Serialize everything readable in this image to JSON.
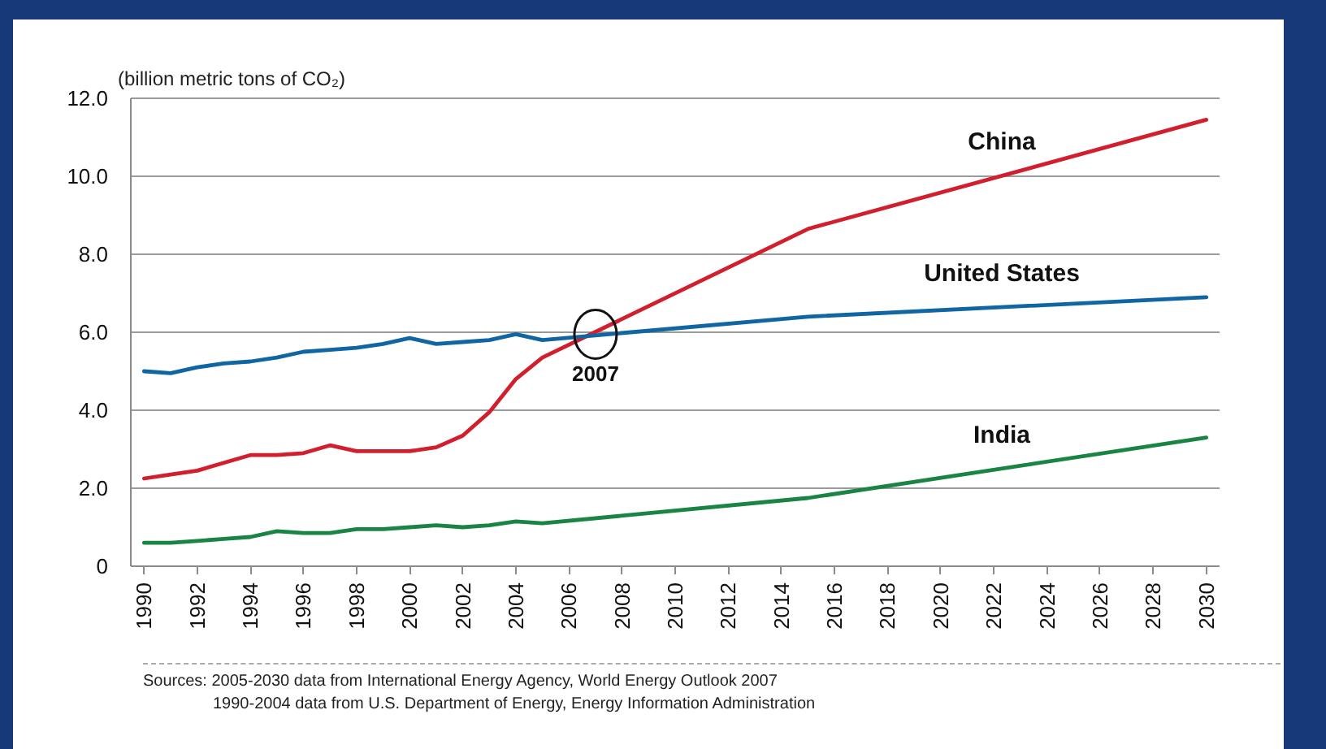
{
  "chart_data": {
    "type": "line",
    "ylabel": "(billion metric tons of CO₂)",
    "x": [
      1990,
      1991,
      1992,
      1993,
      1994,
      1995,
      1996,
      1997,
      1998,
      1999,
      2000,
      2001,
      2002,
      2003,
      2004,
      2005,
      2015,
      2030
    ],
    "series": [
      {
        "name": "China",
        "color": "#d21f2d",
        "values": [
          2.25,
          2.35,
          2.45,
          2.65,
          2.85,
          2.85,
          2.9,
          3.1,
          2.95,
          2.95,
          2.95,
          3.05,
          3.35,
          3.95,
          4.8,
          5.35,
          8.65,
          11.45
        ]
      },
      {
        "name": "United States",
        "color": "#0f66a3",
        "values": [
          5.0,
          4.95,
          5.1,
          5.2,
          5.25,
          5.35,
          5.5,
          5.55,
          5.6,
          5.7,
          5.85,
          5.7,
          5.75,
          5.8,
          5.95,
          5.8,
          6.4,
          6.9
        ]
      },
      {
        "name": "India",
        "color": "#1a8444",
        "values": [
          0.6,
          0.6,
          0.65,
          0.7,
          0.75,
          0.9,
          0.85,
          0.85,
          0.95,
          0.95,
          1.0,
          1.05,
          1.0,
          1.05,
          1.15,
          1.1,
          1.75,
          3.3
        ]
      }
    ],
    "xlim": [
      1989.5,
      2030.5
    ],
    "ylim": [
      0,
      12
    ],
    "xticks": [
      1990,
      1992,
      1994,
      1996,
      1998,
      2000,
      2002,
      2004,
      2006,
      2008,
      2010,
      2012,
      2014,
      2016,
      2018,
      2020,
      2022,
      2024,
      2026,
      2028,
      2030
    ],
    "yticks": [
      0,
      {
        "value": 2,
        "label": "2.0"
      },
      {
        "value": 4,
        "label": "4.0"
      },
      {
        "value": 6,
        "label": "6.0"
      },
      {
        "value": 8,
        "label": "8.0"
      },
      {
        "value": 10,
        "label": "10.0"
      },
      {
        "value": 12,
        "label": "12.0"
      }
    ],
    "grid": "y",
    "annotations": [
      {
        "text": "2007",
        "x": 2007,
        "y": 5.95
      },
      "Sources: 2005-2030 data from International Energy Agency, World Energy Outlook 2007",
      "1990-2004 data from U.S. Department of Energy, Energy Information Administration"
    ]
  }
}
